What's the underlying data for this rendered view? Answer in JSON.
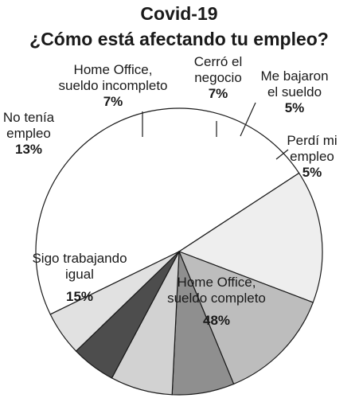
{
  "chart_data": {
    "type": "pie",
    "title": "Covid-19",
    "subtitle": "¿Cómo está afectando tu empleo?",
    "slices": [
      {
        "label": [
          "Home Office,",
          "sueldo completo"
        ],
        "pct_text": "48%",
        "value": 48,
        "color": "#ffffff"
      },
      {
        "label": [
          "Sigo trabajando",
          "igual"
        ],
        "pct_text": "15%",
        "value": 15,
        "color": "#eeeeee"
      },
      {
        "label": [
          "No tenía",
          "empleo"
        ],
        "pct_text": "13%",
        "value": 13,
        "color": "#bdbdbd"
      },
      {
        "label": [
          "Home Office,",
          "sueldo incompleto"
        ],
        "pct_text": "7%",
        "value": 7,
        "color": "#8f8f8f"
      },
      {
        "label": [
          "Cerró el",
          "negocio"
        ],
        "pct_text": "7%",
        "value": 7,
        "color": "#d2d2d2"
      },
      {
        "label": [
          "Me bajaron",
          "el sueldo"
        ],
        "pct_text": "5%",
        "value": 5,
        "color": "#4d4d4d"
      },
      {
        "label": [
          "Perdí mi",
          "empleo"
        ],
        "pct_text": "5%",
        "value": 5,
        "color": "#e1e1e1"
      }
    ]
  }
}
